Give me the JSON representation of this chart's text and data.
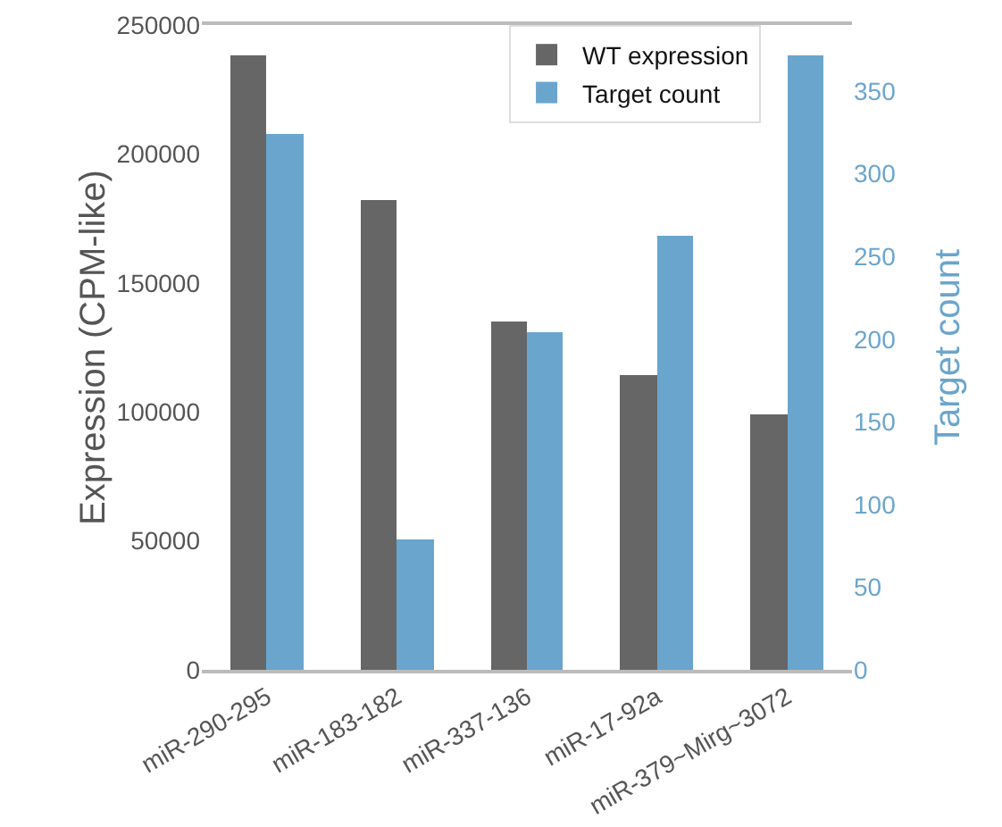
{
  "chart_data": {
    "type": "bar",
    "categories": [
      "miR-290-295",
      "miR-183-182",
      "miR-337-136",
      "miR-17-92a",
      "miR-379~Mirg~3072"
    ],
    "series": [
      {
        "name": "WT expression",
        "color": "#666666",
        "values": [
          238000,
          182000,
          135000,
          114000,
          99000
        ]
      },
      {
        "name": "Target count",
        "color": "#6aa5cd",
        "values": [
          324,
          79,
          204,
          263,
          372
        ],
        "axis": "y2"
      }
    ],
    "ylabel": "Expression (CPM-like)",
    "y2label": "Target count",
    "ylim": [
      0,
      250000
    ],
    "yticks": [
      0,
      50000,
      100000,
      150000,
      200000,
      250000
    ],
    "y2lim": [
      0,
      390
    ],
    "y2ticks": [
      0,
      50,
      100,
      150,
      200,
      250,
      300,
      350
    ],
    "grid": false,
    "legend": "top right"
  }
}
